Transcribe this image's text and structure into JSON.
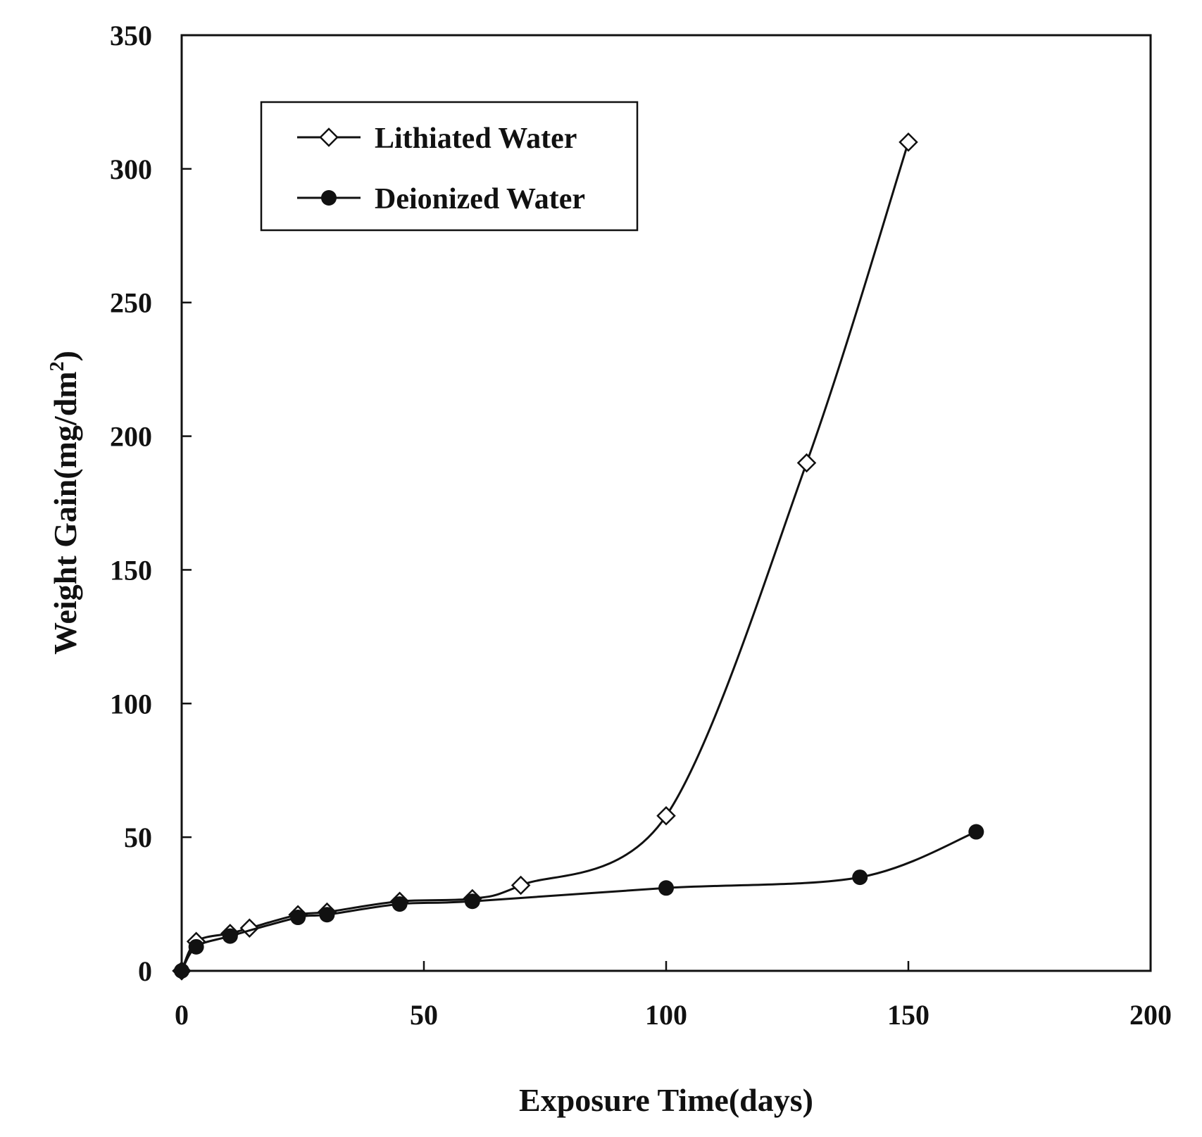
{
  "chart_data": {
    "type": "line",
    "xlabel": "Exposure Time(days)",
    "ylabel": "Weight Gain(mg/dm²)",
    "ylabel_main": "Weight Gain(mg/dm",
    "ylabel_sup": "2",
    "ylabel_close": ")",
    "xlim": [
      0,
      200
    ],
    "ylim": [
      0,
      350
    ],
    "xticks": [
      0,
      50,
      100,
      150,
      200
    ],
    "yticks": [
      0,
      50,
      100,
      150,
      200,
      250,
      300,
      350
    ],
    "grid": false,
    "legend_position": "top-left",
    "series": [
      {
        "name": "Lithiated Water",
        "marker": "open-diamond",
        "color": "#111111",
        "points": [
          {
            "x": 0,
            "y": 0
          },
          {
            "x": 3,
            "y": 11
          },
          {
            "x": 10,
            "y": 14
          },
          {
            "x": 14,
            "y": 16
          },
          {
            "x": 24,
            "y": 21
          },
          {
            "x": 30,
            "y": 22
          },
          {
            "x": 45,
            "y": 26
          },
          {
            "x": 60,
            "y": 27
          },
          {
            "x": 70,
            "y": 32
          },
          {
            "x": 100,
            "y": 58
          },
          {
            "x": 129,
            "y": 190
          },
          {
            "x": 150,
            "y": 310
          }
        ]
      },
      {
        "name": "Deionized Water",
        "marker": "filled-circle",
        "color": "#111111",
        "points": [
          {
            "x": 0,
            "y": 0
          },
          {
            "x": 3,
            "y": 9
          },
          {
            "x": 10,
            "y": 13
          },
          {
            "x": 24,
            "y": 20
          },
          {
            "x": 30,
            "y": 21
          },
          {
            "x": 45,
            "y": 25
          },
          {
            "x": 60,
            "y": 26
          },
          {
            "x": 100,
            "y": 31
          },
          {
            "x": 140,
            "y": 35
          },
          {
            "x": 164,
            "y": 52
          }
        ]
      }
    ]
  }
}
